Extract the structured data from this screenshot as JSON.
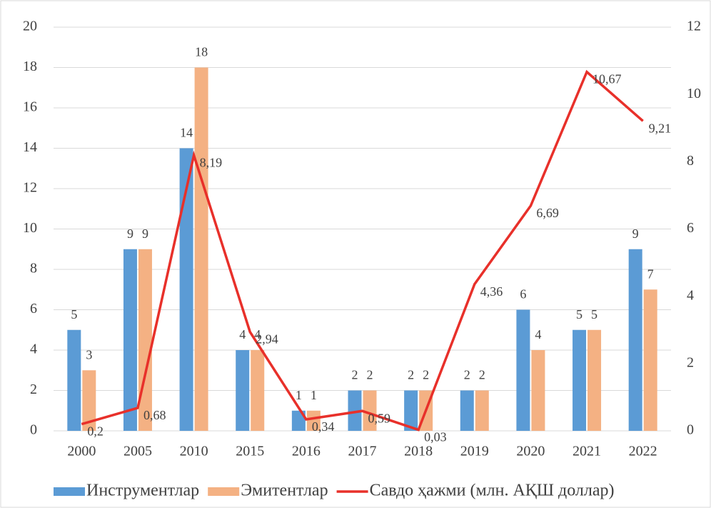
{
  "chart_data": {
    "type": "bar_line",
    "categories": [
      "2000",
      "2005",
      "2010",
      "2015",
      "2016",
      "2017",
      "2018",
      "2019",
      "2020",
      "2021",
      "2022"
    ],
    "series": [
      {
        "name": "Инструментлар",
        "color": "#5b9bd5",
        "type": "bar",
        "values": [
          5,
          9,
          14,
          4,
          1,
          2,
          2,
          2,
          6,
          5,
          9
        ]
      },
      {
        "name": "Эмитентлар",
        "color": "#f4b183",
        "type": "bar",
        "values": [
          3,
          9,
          18,
          4,
          1,
          2,
          2,
          2,
          4,
          5,
          7
        ]
      },
      {
        "name": "Савдо ҳажми (млн. АҚШ доллар)",
        "color": "#e8302a",
        "type": "line",
        "axis": "y2",
        "values": [
          0.2,
          0.68,
          8.19,
          2.94,
          0.34,
          0.59,
          0.03,
          4.36,
          6.69,
          10.67,
          9.21
        ],
        "value_labels": [
          "0,2",
          "0,68",
          "8,19",
          "2,94",
          "0,34",
          "0,59",
          "0,03",
          "4,36",
          "6,69",
          "10,67",
          "9,21"
        ]
      }
    ],
    "ylim": [
      0,
      20
    ],
    "yticks": [
      0,
      2,
      4,
      6,
      8,
      10,
      12,
      14,
      16,
      18,
      20
    ],
    "y2lim": [
      0,
      12
    ],
    "y2ticks": [
      0,
      2,
      4,
      6,
      8,
      10,
      12
    ],
    "grid": true,
    "legend": "bottom"
  }
}
